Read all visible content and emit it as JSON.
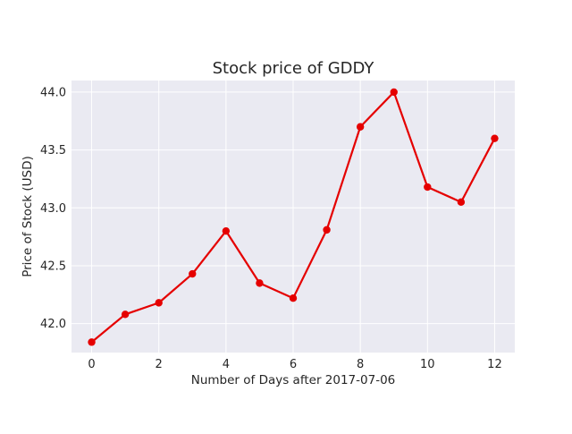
{
  "chart_data": {
    "type": "line",
    "title": "Stock price of GDDY",
    "xlabel": "Number of Days after 2017-07-06",
    "ylabel": "Price of Stock (USD)",
    "x": [
      0,
      1,
      2,
      3,
      4,
      5,
      6,
      7,
      8,
      9,
      10,
      11,
      12
    ],
    "series": [
      {
        "values": [
          41.84,
          42.08,
          42.18,
          42.43,
          42.8,
          42.35,
          42.22,
          42.81,
          43.7,
          44.0,
          43.18,
          43.05,
          43.6
        ],
        "color": "#e50000"
      }
    ],
    "xticks": [
      "0",
      "2",
      "4",
      "6",
      "8",
      "10",
      "12"
    ],
    "yticks": [
      "42.0",
      "42.5",
      "43.0",
      "43.5",
      "44.0"
    ],
    "xlim": [
      -0.6,
      12.6
    ],
    "ylim": [
      41.75,
      44.1
    ],
    "grid": true,
    "plot_background": "#eaeaf2",
    "grid_color": "#ffffff"
  }
}
